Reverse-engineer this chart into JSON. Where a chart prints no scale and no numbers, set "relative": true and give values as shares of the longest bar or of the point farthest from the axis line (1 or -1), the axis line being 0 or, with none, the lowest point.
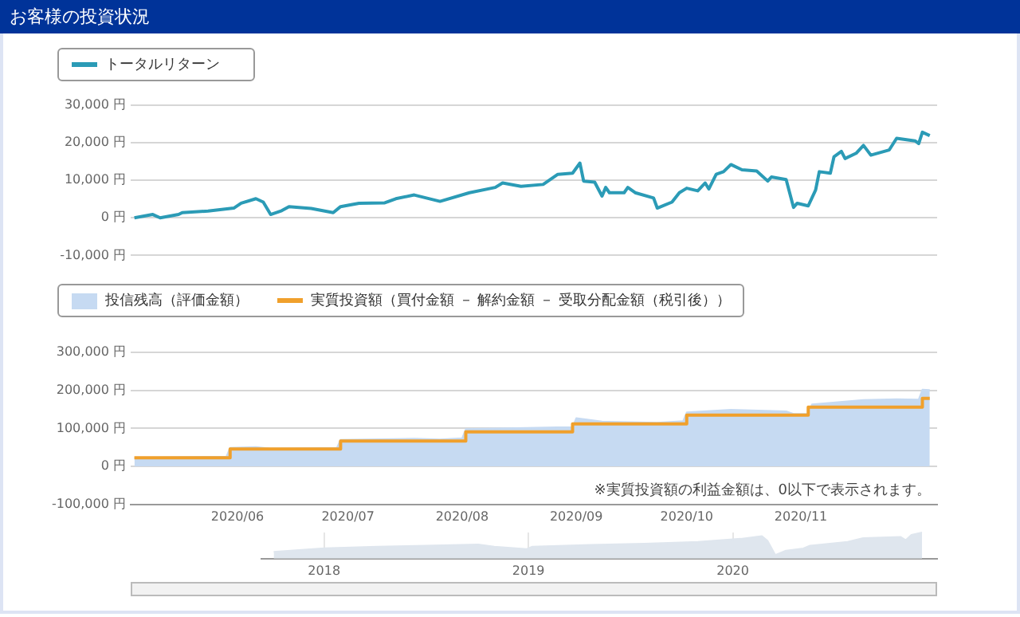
{
  "chart_data": [
    {
      "type": "line",
      "title": "お客様の投資状況",
      "legend": "top left",
      "grid": "y",
      "tick_labels": "y",
      "x": [
        "2020-05-04",
        "2020-05-09",
        "2020-05-11",
        "2020-05-16",
        "2020-05-17",
        "2020-05-24",
        "2020-05-31",
        "2020-06-02",
        "2020-06-06",
        "2020-06-08",
        "2020-06-10",
        "2020-06-13",
        "2020-06-15",
        "2020-06-21",
        "2020-06-27",
        "2020-06-29",
        "2020-07-04",
        "2020-07-11",
        "2020-07-14",
        "2020-07-19",
        "2020-07-26",
        "2020-08-03",
        "2020-08-10",
        "2020-08-12",
        "2020-08-17",
        "2020-08-23",
        "2020-08-27",
        "2020-08-31",
        "2020-09-02",
        "2020-09-03",
        "2020-09-06",
        "2020-09-08",
        "2020-09-09",
        "2020-09-10",
        "2020-09-14",
        "2020-09-15",
        "2020-09-17",
        "2020-09-22",
        "2020-09-23",
        "2020-09-27",
        "2020-09-29",
        "2020-10-01",
        "2020-10-04",
        "2020-10-06",
        "2020-10-07",
        "2020-10-09",
        "2020-10-11",
        "2020-10-13",
        "2020-10-16",
        "2020-10-20",
        "2020-10-23",
        "2020-10-24",
        "2020-10-28",
        "2020-10-30",
        "2020-10-31",
        "2020-11-03",
        "2020-11-05",
        "2020-11-06",
        "2020-11-09",
        "2020-11-10",
        "2020-11-12",
        "2020-11-13",
        "2020-11-16",
        "2020-11-18",
        "2020-11-20",
        "2020-11-25",
        "2020-11-27",
        "2020-12-02",
        "2020-12-03",
        "2020-12-04",
        "2020-12-06"
      ],
      "series": [
        {
          "name": "トータルリターン",
          "color": "#2b9bb6",
          "values": [
            0,
            900,
            0,
            900,
            1400,
            1800,
            2600,
            3900,
            5100,
            4200,
            900,
            1900,
            3000,
            2500,
            1400,
            3000,
            3900,
            4000,
            5100,
            6100,
            4400,
            6700,
            8100,
            9300,
            8400,
            8900,
            11600,
            11900,
            14600,
            9800,
            9500,
            5800,
            8100,
            6700,
            6700,
            8100,
            6700,
            5300,
            2600,
            4200,
            6700,
            7900,
            7200,
            9300,
            7700,
            11600,
            12300,
            14200,
            12800,
            12500,
            9800,
            10900,
            10200,
            2800,
            3900,
            3200,
            7400,
            12300,
            11900,
            16300,
            17700,
            15800,
            17200,
            19300,
            16700,
            18100,
            21200,
            20500,
            19800,
            22800,
            21900
          ]
        }
      ],
      "xlim": [
        "2020-05-03",
        "2020-12-08"
      ],
      "ylim": [
        -10000,
        30000
      ],
      "yticks": [
        {
          "value": -10000,
          "label": "-10,000 円"
        },
        {
          "value": 0,
          "label": "0 円"
        },
        {
          "value": 10000,
          "label": "10,000 円"
        },
        {
          "value": 20000,
          "label": "20,000 円"
        },
        {
          "value": 30000,
          "label": "30,000 円"
        }
      ]
    },
    {
      "type": "line",
      "legend": "top left",
      "grid": "y",
      "series": [
        {
          "type": "area",
          "name": "投信残高（評価金額）",
          "color": "#c6daf2",
          "x": [
            "2020-05-04",
            "2020-05-29",
            "2020-05-30",
            "2020-06-06",
            "2020-06-10",
            "2020-06-28",
            "2020-06-29",
            "2020-07-19",
            "2020-07-26",
            "2020-08-01",
            "2020-08-02",
            "2020-08-27",
            "2020-08-31",
            "2020-09-01",
            "2020-09-08",
            "2020-09-23",
            "2020-09-30",
            "2020-10-01",
            "2020-10-13",
            "2020-10-28",
            "2020-10-30",
            "2020-11-03",
            "2020-11-04",
            "2020-11-18",
            "2020-11-27",
            "2020-12-03",
            "2020-12-04",
            "2020-12-06"
          ],
          "values": [
            23000,
            26000,
            49000,
            51000,
            47000,
            49000,
            70000,
            73000,
            71000,
            74000,
            98000,
            103000,
            103000,
            127000,
            118000,
            115000,
            119000,
            142000,
            149000,
            145000,
            138000,
            138000,
            163000,
            175000,
            177000,
            176000,
            202000,
            201000
          ]
        },
        {
          "type": "step",
          "name": "実質投資額（買付金額 － 解約金額 － 受取分配金額（税引後））",
          "color": "#f0a02c",
          "x": [
            "2020-05-04",
            "2020-05-30",
            "2020-06-29",
            "2020-08-02",
            "2020-08-31",
            "2020-10-01",
            "2020-11-03",
            "2020-12-04",
            "2020-12-06"
          ],
          "values": [
            23000,
            46000,
            67000,
            91000,
            112000,
            135000,
            156000,
            179000,
            179000
          ]
        }
      ],
      "xlim": [
        "2020-05-03",
        "2020-12-08"
      ],
      "xticks": [
        {
          "value": "2020-06-01",
          "label": "2020/06"
        },
        {
          "value": "2020-07-01",
          "label": "2020/07"
        },
        {
          "value": "2020-08-01",
          "label": "2020/08"
        },
        {
          "value": "2020-09-01",
          "label": "2020/09"
        },
        {
          "value": "2020-10-01",
          "label": "2020/10"
        },
        {
          "value": "2020-11-01",
          "label": "2020/11"
        }
      ],
      "ylim": [
        -100000,
        300000
      ],
      "yticks": [
        {
          "value": -100000,
          "label": "-100,000 円"
        },
        {
          "value": 0,
          "label": "0 円"
        },
        {
          "value": 100000,
          "label": "100,000 円"
        },
        {
          "value": 200000,
          "label": "200,000 円"
        },
        {
          "value": 300000,
          "label": "300,000 円"
        }
      ],
      "annotations": [
        "※実質投資額の利益金額は、0以下で表示されます。"
      ]
    },
    {
      "type": "area",
      "relative": true,
      "grid": "x",
      "x": [
        "2017-10-03",
        "2018-01-01",
        "2018-04-06",
        "2018-07-01",
        "2018-10-03",
        "2018-11-01",
        "2018-12-29",
        "2019-01-08",
        "2019-04-22",
        "2019-07-27",
        "2019-10-31",
        "2020-01-15",
        "2020-02-22",
        "2020-03-03",
        "2020-03-17",
        "2020-04-05",
        "2020-05-06",
        "2020-05-18",
        "2020-07-24",
        "2020-08-21",
        "2020-10-27",
        "2020-11-05",
        "2020-11-15",
        "2020-12-04"
      ],
      "series": [
        {
          "color": "#dfe6ee",
          "values": [
            0.26,
            0.4,
            0.46,
            0.5,
            0.54,
            0.46,
            0.37,
            0.46,
            0.53,
            0.57,
            0.64,
            0.76,
            0.86,
            0.69,
            0.14,
            0.31,
            0.39,
            0.5,
            0.64,
            0.79,
            0.83,
            0.71,
            0.91,
            1
          ]
        }
      ],
      "xlim": [
        "2017-09-11",
        "2020-12-31"
      ],
      "xticks": [
        {
          "value": "2018",
          "label": "2018"
        },
        {
          "value": "2019",
          "label": "2019"
        },
        {
          "value": "2020",
          "label": "2020"
        }
      ]
    }
  ]
}
